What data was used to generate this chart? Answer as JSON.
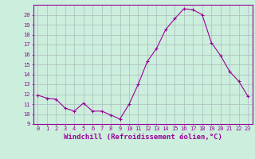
{
  "x": [
    0,
    1,
    2,
    3,
    4,
    5,
    6,
    7,
    8,
    9,
    10,
    11,
    12,
    13,
    14,
    15,
    16,
    17,
    18,
    19,
    20,
    21,
    22,
    23
  ],
  "y": [
    11.9,
    11.6,
    11.5,
    10.6,
    10.3,
    11.1,
    10.3,
    10.3,
    9.9,
    9.5,
    11.0,
    13.0,
    15.3,
    16.6,
    18.5,
    19.6,
    20.6,
    20.5,
    20.0,
    17.2,
    15.9,
    14.3,
    13.3,
    11.8
  ],
  "line_color": "#990099",
  "marker": "+",
  "marker_size": 3.5,
  "bg_color": "#cceedd",
  "grid_color": "#aabbbb",
  "xlabel": "Windchill (Refroidissement éolien,°C)",
  "ylabel": "",
  "xlim": [
    -0.5,
    23.5
  ],
  "ylim": [
    9,
    21
  ],
  "yticks": [
    9,
    10,
    11,
    12,
    13,
    14,
    15,
    16,
    17,
    18,
    19,
    20
  ],
  "xticks": [
    0,
    1,
    2,
    3,
    4,
    5,
    6,
    7,
    8,
    9,
    10,
    11,
    12,
    13,
    14,
    15,
    16,
    17,
    18,
    19,
    20,
    21,
    22,
    23
  ],
  "tick_color": "#990099",
  "label_color": "#990099",
  "tick_fontsize": 5.0,
  "xlabel_fontsize": 6.5,
  "spine_color": "#990099",
  "linewidth": 0.8
}
